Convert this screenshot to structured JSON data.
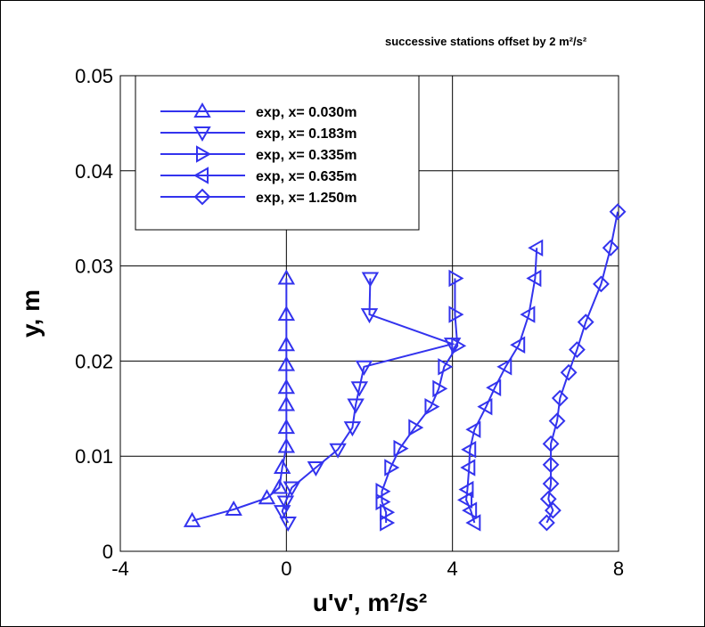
{
  "chart_data": {
    "type": "line",
    "annotation": "successive stations offset by 2 m²/s²",
    "xlabel": "u'v', m²/s²",
    "ylabel": "y, m",
    "xlim": [
      -4,
      8
    ],
    "ylim": [
      0,
      0.05
    ],
    "xticks": [
      "-4",
      "0",
      "4",
      "8"
    ],
    "yticks": [
      "0",
      "0.01",
      "0.02",
      "0.03",
      "0.04",
      "0.05"
    ],
    "grid": true,
    "legend_position": "top-left",
    "color": "#3333ee",
    "series": [
      {
        "name": "exp, x= 0.030m",
        "marker": "triangle-up",
        "x": [
          0,
          0,
          0,
          0,
          0,
          0,
          0,
          0,
          -0.1,
          -0.17,
          -0.47,
          -1.27,
          -2.27
        ],
        "y": [
          0.0287,
          0.0249,
          0.0217,
          0.0196,
          0.0172,
          0.0154,
          0.013,
          0.011,
          0.0088,
          0.0067,
          0.0056,
          0.0044,
          0.0032
        ]
      },
      {
        "name": "exp, x= 0.183m",
        "marker": "triangle-down",
        "x": [
          2.02,
          2.0,
          4.0,
          1.87,
          1.76,
          1.67,
          1.59,
          1.24,
          0.71,
          0.13,
          -0.02,
          -0.1,
          0.04
        ],
        "y": [
          0.0287,
          0.0249,
          0.0218,
          0.0194,
          0.0172,
          0.0154,
          0.013,
          0.0107,
          0.0088,
          0.0067,
          0.0052,
          0.0042,
          0.003
        ]
      },
      {
        "name": "exp, x= 0.335m",
        "marker": "triangle-right",
        "x": [
          4.06,
          4.06,
          4.12,
          3.8,
          3.67,
          3.48,
          3.09,
          2.73,
          2.51,
          2.3,
          2.3,
          2.4,
          2.4
        ],
        "y": [
          0.0287,
          0.0249,
          0.0216,
          0.0194,
          0.0171,
          0.0152,
          0.013,
          0.0108,
          0.0088,
          0.0063,
          0.0052,
          0.0041,
          0.003
        ]
      },
      {
        "name": "exp, x= 0.635m",
        "marker": "triangle-left",
        "x": [
          6.03,
          5.99,
          5.84,
          5.6,
          5.28,
          5.02,
          4.81,
          4.53,
          4.42,
          4.4,
          4.36,
          4.33,
          4.44,
          4.53
        ],
        "y": [
          0.0319,
          0.0287,
          0.0249,
          0.0217,
          0.0194,
          0.0172,
          0.0152,
          0.0128,
          0.0107,
          0.0088,
          0.0065,
          0.0054,
          0.0043,
          0.003
        ]
      },
      {
        "name": "exp, x= 1.250m",
        "marker": "diamond",
        "x": [
          7.98,
          7.81,
          7.58,
          7.21,
          7.0,
          6.8,
          6.59,
          6.52,
          6.37,
          6.37,
          6.37,
          6.31,
          6.42,
          6.27
        ],
        "y": [
          0.0357,
          0.0319,
          0.0281,
          0.0241,
          0.0212,
          0.0188,
          0.0161,
          0.0137,
          0.0113,
          0.0091,
          0.0071,
          0.0055,
          0.0043,
          0.003
        ]
      }
    ]
  }
}
